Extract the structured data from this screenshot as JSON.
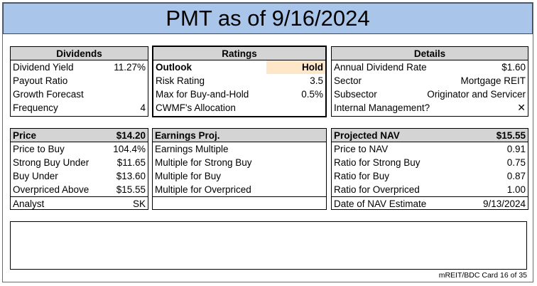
{
  "title": "PMT as of 9/16/2024",
  "dividends": {
    "header": "Dividends",
    "rows": [
      {
        "label": "Dividend Yield",
        "value": "11.27%"
      },
      {
        "label": "Payout Ratio",
        "value": ""
      },
      {
        "label": "Growth Forecast",
        "value": ""
      },
      {
        "label": "Frequency",
        "value": "4"
      }
    ]
  },
  "ratings": {
    "header": "Ratings",
    "rows": [
      {
        "label": "Outlook",
        "value": "Hold"
      },
      {
        "label": "Risk Rating",
        "value": "3.5"
      },
      {
        "label": "Max for Buy-and-Hold",
        "value": "0.5%"
      },
      {
        "label": "CWMF's Allocation",
        "value": ""
      }
    ]
  },
  "details": {
    "header": "Details",
    "rows": [
      {
        "label": "Annual Dividend Rate",
        "value": "$1.60"
      },
      {
        "label": "Sector",
        "value": "Mortgage REIT"
      },
      {
        "label": "Subsector",
        "value": "Originator and Servicer"
      },
      {
        "label": "Internal Management?",
        "value": "✕"
      }
    ]
  },
  "price": {
    "header_label": "Price",
    "header_value": "$14.20",
    "rows": [
      {
        "label": "Price to Buy",
        "value": "104.4%"
      },
      {
        "label": "Strong Buy Under",
        "value": "$11.65"
      },
      {
        "label": "Buy Under",
        "value": "$13.60"
      },
      {
        "label": "Overpriced Above",
        "value": "$15.55"
      },
      {
        "label": "Analyst",
        "value": "SK"
      }
    ]
  },
  "earnings": {
    "header": "Earnings Proj.",
    "rows": [
      {
        "label": "Earnings Multiple",
        "value": ""
      },
      {
        "label": "Multiple for Strong Buy",
        "value": ""
      },
      {
        "label": "Multiple for Buy",
        "value": ""
      },
      {
        "label": "Multiple for Overpriced",
        "value": ""
      },
      {
        "label": "",
        "value": ""
      }
    ]
  },
  "nav": {
    "header_label": "Projected NAV",
    "header_value": "$15.55",
    "rows": [
      {
        "label": "Price to NAV",
        "value": "0.91"
      },
      {
        "label": "Ratio for Strong Buy",
        "value": "0.75"
      },
      {
        "label": "Ratio for Buy",
        "value": "0.87"
      },
      {
        "label": "Ratio for Overpriced",
        "value": "1.00"
      },
      {
        "label": "Date of NAV Estimate",
        "value": "9/13/2024"
      }
    ]
  },
  "footer": "mREIT/BDC Card 16 of 35",
  "colors": {
    "title_bg": "#a9c6ea",
    "header_bg": "#d4d4d4",
    "highlight_bg": "#fde7c8"
  }
}
